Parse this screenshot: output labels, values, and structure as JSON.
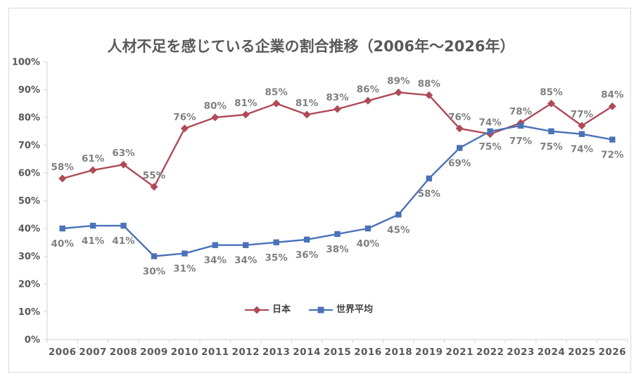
{
  "chart_data": {
    "type": "line",
    "title": "人材不足を感じている企業の割合推移（2006年～2026年）",
    "categories": [
      "2006",
      "2007",
      "2008",
      "2009",
      "2010",
      "2011",
      "2012",
      "2013",
      "2014",
      "2015",
      "2016",
      "2018",
      "2019",
      "2021",
      "2022",
      "2023",
      "2024",
      "2025",
      "2026"
    ],
    "series": [
      {
        "name": "日本",
        "marker": "diamond",
        "color": "#AF4A58",
        "label_position": "above",
        "values": [
          58,
          61,
          63,
          55,
          76,
          80,
          81,
          85,
          81,
          83,
          86,
          89,
          88,
          76,
          74,
          78,
          85,
          77,
          84
        ]
      },
      {
        "name": "世界平均",
        "marker": "square",
        "color": "#4A72B8",
        "label_position": "below",
        "values": [
          40,
          41,
          41,
          30,
          31,
          34,
          34,
          35,
          36,
          38,
          40,
          45,
          58,
          69,
          75,
          77,
          75,
          74,
          72
        ]
      }
    ],
    "ylim": [
      0,
      100
    ],
    "yticks": [
      "0%",
      "10%",
      "20%",
      "30%",
      "40%",
      "50%",
      "60%",
      "70%",
      "80%",
      "90%",
      "100%"
    ],
    "data_label_format": "{v}%",
    "grid": false,
    "legend_position": "bottom-center-inside",
    "xlabel": "",
    "ylabel": ""
  },
  "styles": {
    "background": "#FFFFFF",
    "frame_border": "#D9D9D9",
    "axis_line": "#D9D9D9",
    "tick_label_color": "#595959",
    "data_label_color": "#808080",
    "title_color": "#595959",
    "legend_text_color": "#404040"
  }
}
